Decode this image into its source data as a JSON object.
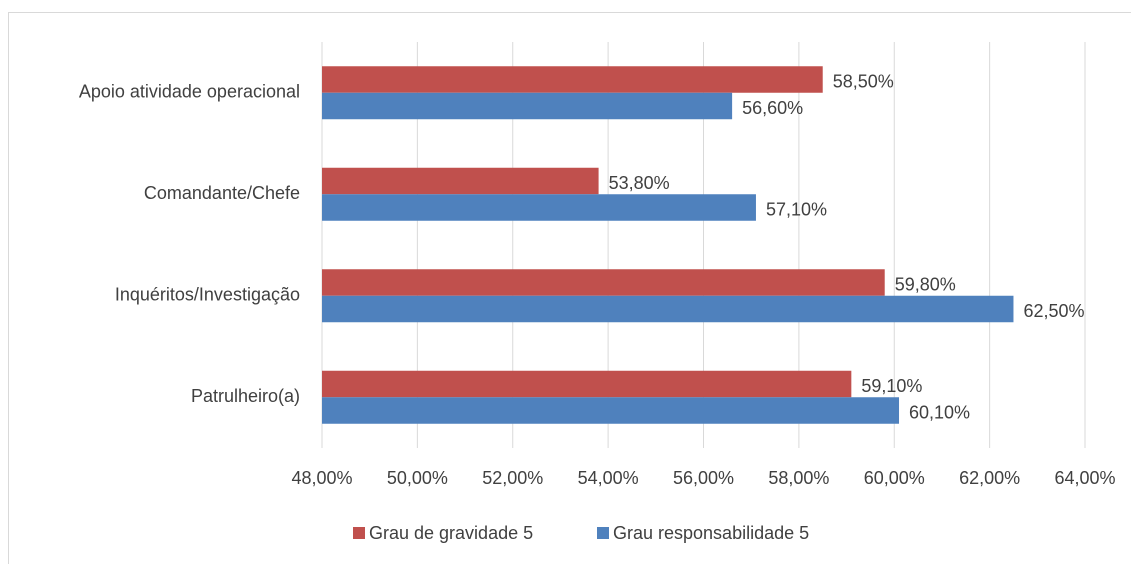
{
  "chart_data": {
    "type": "hbar",
    "categories": [
      "Apoio atividade operacional",
      "Comandante/Chefe",
      "Inquéritos/Investigação",
      "Patrulheiro(a)"
    ],
    "series": [
      {
        "name": "Grau de gravidade 5",
        "color": "#c0504d",
        "values": [
          58.5,
          53.8,
          59.8,
          59.1
        ],
        "value_labels": [
          "58,50%",
          "53,80%",
          "59,80%",
          "59,10%"
        ]
      },
      {
        "name": "Grau responsabilidade 5",
        "color": "#4f81bd",
        "values": [
          56.6,
          57.1,
          62.5,
          60.1
        ],
        "value_labels": [
          "56,60%",
          "57,10%",
          "62,50%",
          "60,10%"
        ]
      }
    ],
    "xlim": [
      48,
      64
    ],
    "xticks": [
      {
        "value": 48,
        "label": "48,00%"
      },
      {
        "value": 50,
        "label": "50,00%"
      },
      {
        "value": 52,
        "label": "52,00%"
      },
      {
        "value": 54,
        "label": "54,00%"
      },
      {
        "value": 56,
        "label": "56,00%"
      },
      {
        "value": 58,
        "label": "58,00%"
      },
      {
        "value": 60,
        "label": "60,00%"
      },
      {
        "value": 62,
        "label": "62,00%"
      },
      {
        "value": 64,
        "label": "64,00%"
      }
    ],
    "grid": true,
    "legend": "bottom"
  }
}
